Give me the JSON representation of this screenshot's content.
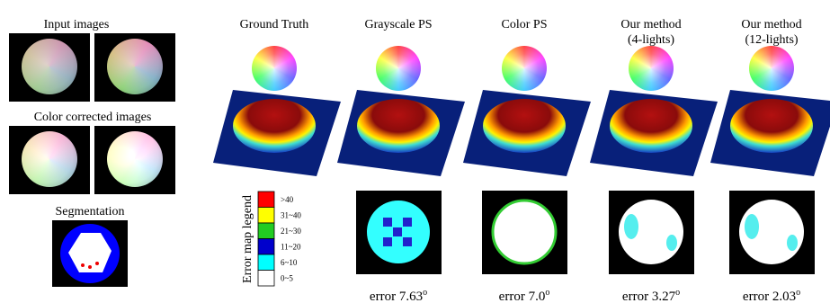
{
  "left": {
    "input_title": "Input images",
    "corrected_title": "Color corrected images",
    "segmentation_title": "Segmentation"
  },
  "columns": [
    {
      "header": [
        "Ground Truth"
      ]
    },
    {
      "header": [
        "Grayscale PS"
      ],
      "error": {
        "text": "error 7.63",
        "sup": "o"
      }
    },
    {
      "header": [
        "Color PS"
      ],
      "error": {
        "text": "error 7.0",
        "sup": "o"
      }
    },
    {
      "header": [
        "Our method",
        "(4-lights)"
      ],
      "error": {
        "text": "error 3.27",
        "sup": "o"
      }
    },
    {
      "header": [
        "Our method",
        "(12-lights)"
      ],
      "error": {
        "text": "error 2.03",
        "sup": "o"
      }
    }
  ],
  "legend": {
    "title": "Error map legend",
    "items": [
      ">40",
      "31~40",
      "21~30",
      "11~20",
      "6~10",
      "0~5"
    ]
  }
}
